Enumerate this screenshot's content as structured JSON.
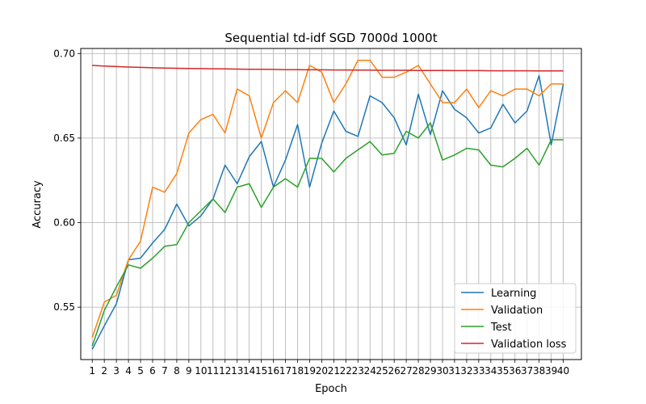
{
  "chart_data": {
    "type": "line",
    "title": "Sequential td-idf SGD 7000d 1000t",
    "xlabel": "Epoch",
    "ylabel": "Accuracy",
    "x": [
      1,
      2,
      3,
      4,
      5,
      6,
      7,
      8,
      9,
      10,
      11,
      12,
      13,
      14,
      15,
      16,
      17,
      18,
      19,
      20,
      21,
      22,
      23,
      24,
      25,
      26,
      27,
      28,
      29,
      30,
      31,
      32,
      33,
      34,
      35,
      36,
      37,
      38,
      39,
      40
    ],
    "xticks": [
      "1",
      "2",
      "3",
      "4",
      "5",
      "6",
      "7",
      "8",
      "9",
      "10",
      "11",
      "12",
      "13",
      "14",
      "15",
      "16",
      "17",
      "18",
      "19",
      "20",
      "21",
      "22",
      "23",
      "24",
      "25",
      "26",
      "27",
      "28",
      "29",
      "30",
      "31",
      "32",
      "33",
      "34",
      "35",
      "36",
      "37",
      "38",
      "39",
      "40"
    ],
    "ylim": [
      0.519,
      0.703
    ],
    "yticks": [
      0.55,
      0.6,
      0.65,
      0.7
    ],
    "ytick_labels": [
      "0.55",
      "0.60",
      "0.65",
      "0.70"
    ],
    "grid": true,
    "legend_position": "lower-right",
    "series": [
      {
        "name": "Learning",
        "color": "#1f77b4",
        "values": [
          0.525,
          0.539,
          0.552,
          0.578,
          0.579,
          0.588,
          0.596,
          0.611,
          0.598,
          0.604,
          0.614,
          0.634,
          0.623,
          0.639,
          0.648,
          0.621,
          0.637,
          0.658,
          0.621,
          0.647,
          0.666,
          0.654,
          0.651,
          0.675,
          0.671,
          0.662,
          0.646,
          0.676,
          0.652,
          0.678,
          0.667,
          0.662,
          0.653,
          0.656,
          0.67,
          0.659,
          0.666,
          0.687,
          0.646,
          0.682
        ]
      },
      {
        "name": "Validation",
        "color": "#ff7f0e",
        "values": [
          0.532,
          0.553,
          0.557,
          0.578,
          0.589,
          0.621,
          0.618,
          0.629,
          0.653,
          0.661,
          0.664,
          0.653,
          0.679,
          0.675,
          0.65,
          0.671,
          0.678,
          0.671,
          0.693,
          0.689,
          0.671,
          0.682,
          0.696,
          0.696,
          0.686,
          0.686,
          0.689,
          0.693,
          0.682,
          0.671,
          0.671,
          0.679,
          0.668,
          0.678,
          0.675,
          0.679,
          0.679,
          0.675,
          0.682,
          0.682
        ]
      },
      {
        "name": "Test",
        "color": "#2ca02c",
        "values": [
          0.527,
          0.548,
          0.562,
          0.575,
          0.573,
          0.579,
          0.586,
          0.587,
          0.6,
          0.607,
          0.614,
          0.606,
          0.621,
          0.623,
          0.609,
          0.621,
          0.626,
          0.621,
          0.638,
          0.638,
          0.63,
          0.638,
          0.643,
          0.648,
          0.64,
          0.641,
          0.654,
          0.65,
          0.659,
          0.637,
          0.64,
          0.644,
          0.643,
          0.634,
          0.633,
          0.638,
          0.644,
          0.634,
          0.649,
          0.649
        ]
      },
      {
        "name": "Validation loss",
        "color": "#d62728",
        "values": [
          0.693,
          0.6926,
          0.6923,
          0.692,
          0.6918,
          0.6916,
          0.6914,
          0.6913,
          0.6912,
          0.6911,
          0.691,
          0.6909,
          0.6908,
          0.6907,
          0.6907,
          0.6906,
          0.6905,
          0.6905,
          0.6904,
          0.6904,
          0.6903,
          0.6903,
          0.6902,
          0.6902,
          0.6901,
          0.6901,
          0.6901,
          0.69,
          0.69,
          0.69,
          0.6899,
          0.6899,
          0.6899,
          0.6898,
          0.6898,
          0.6898,
          0.6898,
          0.6897,
          0.6897,
          0.6897
        ]
      }
    ]
  }
}
